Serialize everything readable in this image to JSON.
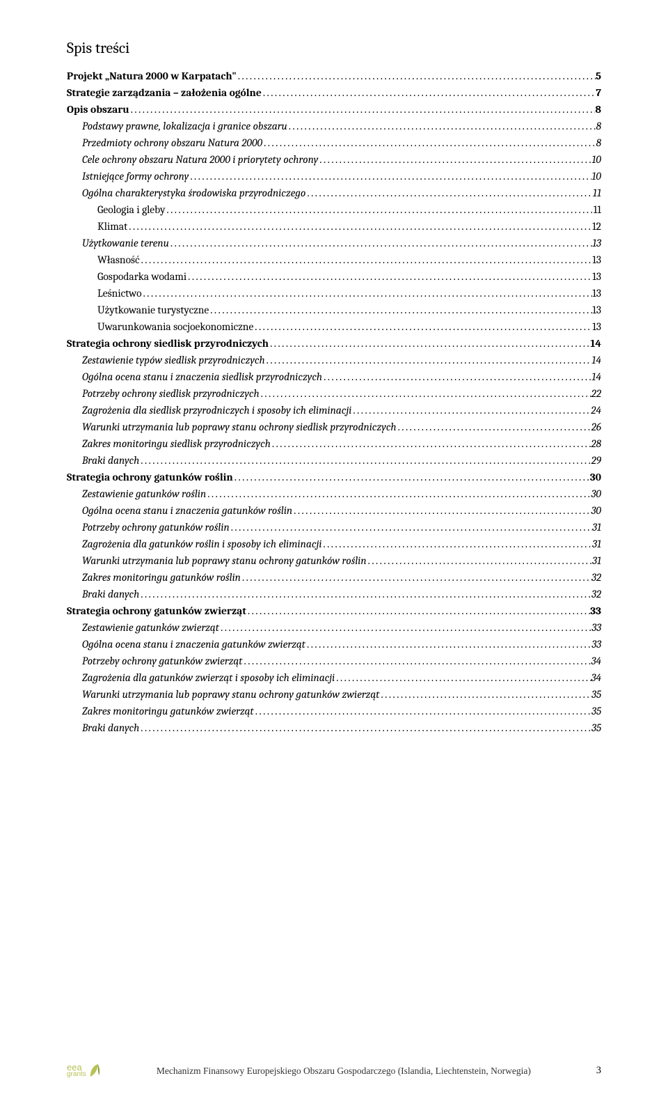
{
  "title": "Spis treści",
  "entries": [
    {
      "level": 1,
      "label": "Projekt „Natura 2000 w Karpatach\"",
      "page": "5"
    },
    {
      "level": 1,
      "label": "Strategie zarządzania – założenia ogólne",
      "page": "7"
    },
    {
      "level": 1,
      "label": "Opis obszaru",
      "page": "8"
    },
    {
      "level": 2,
      "label": "Podstawy prawne, lokalizacja i granice obszaru",
      "page": "8"
    },
    {
      "level": 2,
      "label": "Przedmioty ochrony obszaru Natura 2000",
      "page": "8"
    },
    {
      "level": 2,
      "label": "Cele ochrony obszaru Natura 2000 i priorytety ochrony",
      "page": "10"
    },
    {
      "level": 2,
      "label": "Istniejące formy ochrony",
      "page": "10"
    },
    {
      "level": 2,
      "label": "Ogólna charakterystyka środowiska przyrodniczego",
      "page": "11"
    },
    {
      "level": 3,
      "label": "Geologia i gleby",
      "page": "11"
    },
    {
      "level": 3,
      "label": "Klimat",
      "page": "12"
    },
    {
      "level": 2,
      "label": "Użytkowanie terenu",
      "page": "13"
    },
    {
      "level": 3,
      "label": "Własność",
      "page": "13"
    },
    {
      "level": 3,
      "label": "Gospodarka wodami",
      "page": "13"
    },
    {
      "level": 3,
      "label": "Leśnictwo",
      "page": "13"
    },
    {
      "level": 3,
      "label": "Użytkowanie turystyczne",
      "page": "13"
    },
    {
      "level": 3,
      "label": "Uwarunkowania socjoekonomiczne",
      "page": "13"
    },
    {
      "level": 1,
      "label": "Strategia ochrony siedlisk przyrodniczych",
      "page": "14"
    },
    {
      "level": 2,
      "label": "Zestawienie typów siedlisk przyrodniczych",
      "page": "14"
    },
    {
      "level": 2,
      "label": "Ogólna ocena stanu i znaczenia siedlisk przyrodniczych",
      "page": "14"
    },
    {
      "level": 2,
      "label": "Potrzeby ochrony  siedlisk przyrodniczych",
      "page": "22"
    },
    {
      "level": 2,
      "label": "Zagrożenia dla siedlisk przyrodniczych i sposoby ich eliminacji",
      "page": "24"
    },
    {
      "level": 2,
      "label": "Warunki utrzymania lub poprawy stanu ochrony siedlisk przyrodniczych",
      "page": "26"
    },
    {
      "level": 2,
      "label": "Zakres monitoringu siedlisk przyrodniczych",
      "page": "28"
    },
    {
      "level": 2,
      "label": "Braki danych",
      "page": "29"
    },
    {
      "level": 1,
      "label": "Strategia ochrony gatunków roślin",
      "page": "30"
    },
    {
      "level": 2,
      "label": "Zestawienie gatunków roślin",
      "page": "30"
    },
    {
      "level": 2,
      "label": "Ogólna ocena stanu i znaczenia gatunków roślin",
      "page": "30"
    },
    {
      "level": 2,
      "label": "Potrzeby ochrony  gatunków roślin",
      "page": "31"
    },
    {
      "level": 2,
      "label": "Zagrożenia dla gatunków roślin i sposoby ich eliminacji",
      "page": "31"
    },
    {
      "level": 2,
      "label": "Warunki utrzymania lub poprawy stanu ochrony gatunków roślin",
      "page": "31"
    },
    {
      "level": 2,
      "label": "Zakres monitoringu gatunków roślin",
      "page": "32"
    },
    {
      "level": 2,
      "label": "Braki danych",
      "page": "32"
    },
    {
      "level": 1,
      "label": "Strategia ochrony gatunków zwierząt",
      "page": "33"
    },
    {
      "level": 2,
      "label": "Zestawienie gatunków zwierząt",
      "page": "33"
    },
    {
      "level": 2,
      "label": "Ogólna ocena stanu i znaczenia gatunków zwierząt",
      "page": "33"
    },
    {
      "level": 2,
      "label": "Potrzeby ochrony  gatunków zwierząt",
      "page": "34"
    },
    {
      "level": 2,
      "label": "Zagrożenia dla gatunków zwierząt i sposoby ich eliminacji",
      "page": "34"
    },
    {
      "level": 2,
      "label": "Warunki utrzymania lub poprawy stanu ochrony gatunków zwierząt",
      "page": "35"
    },
    {
      "level": 2,
      "label": "Zakres monitoringu gatunków zwierząt",
      "page": "35"
    },
    {
      "level": 2,
      "label": "Braki danych",
      "page": "35"
    }
  ],
  "footer": {
    "logo_top": "eea",
    "logo_bot": "grants",
    "text": "Mechanizm Finansowy Europejskiego Obszaru Gospodarczego  (Islandia, Liechtenstein, Norwegia)",
    "page": "3"
  }
}
